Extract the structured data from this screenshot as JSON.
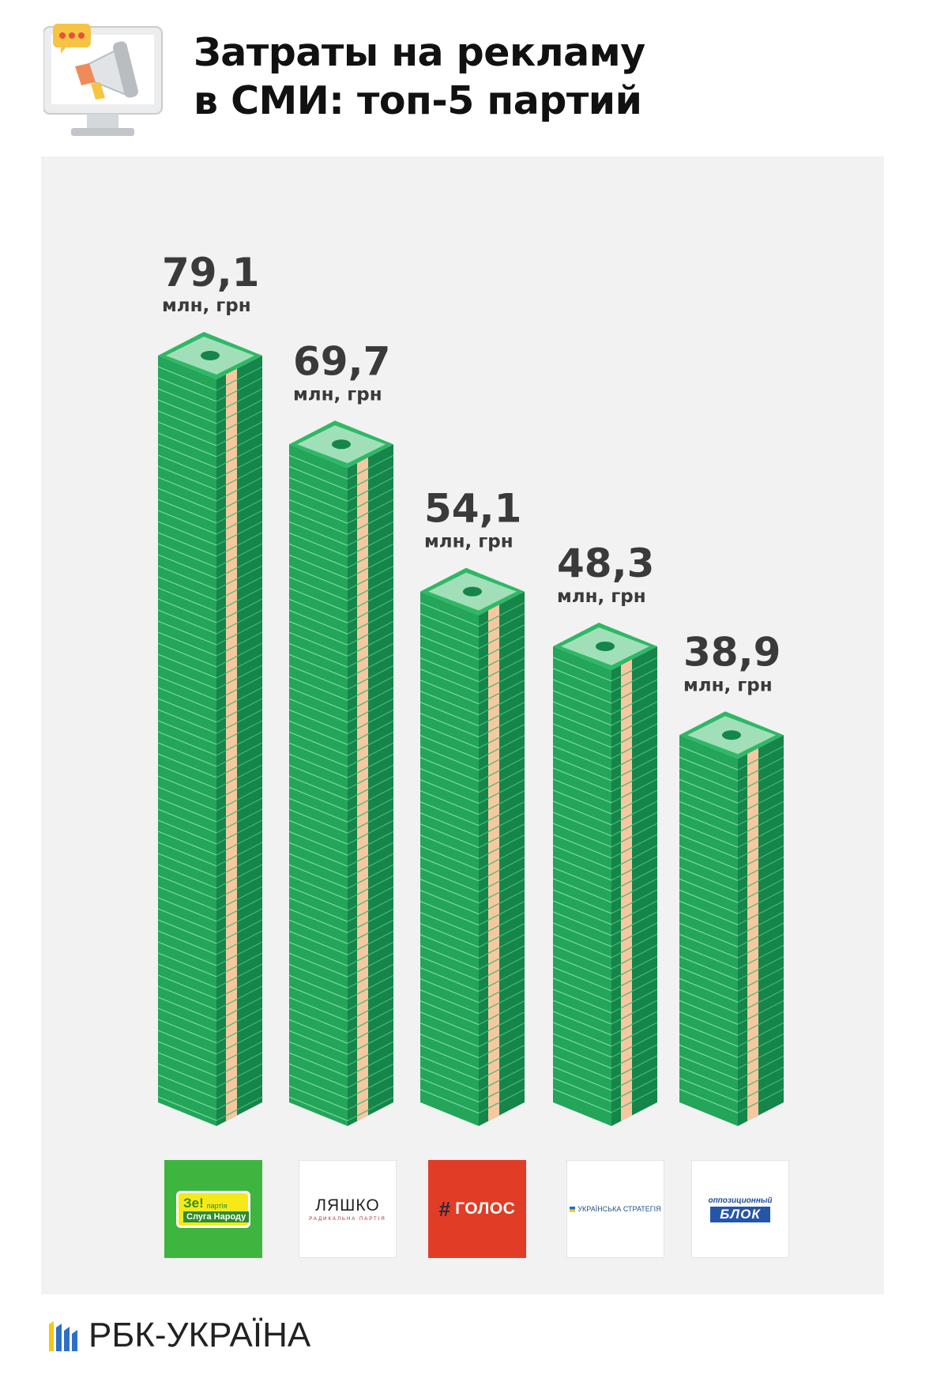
{
  "header": {
    "title_line1": "Затраты на рекламу",
    "title_line2": "в СМИ: топ-5 партий",
    "icon": "megaphone-monitor-icon"
  },
  "chart_data": {
    "type": "bar",
    "title": "Затраты на рекламу в СМИ: топ-5 партий",
    "categories": [
      "Слуга Народу",
      "Ляшко",
      "Голос",
      "Українська Стратегія",
      "Оппозиционный блок"
    ],
    "values": [
      79.1,
      69.7,
      54.1,
      48.3,
      38.9
    ],
    "value_labels": [
      "79,1",
      "69,7",
      "54,1",
      "48,3",
      "38,9"
    ],
    "unit": "млн, грн",
    "ylim": [
      0,
      79.1
    ],
    "grid": false,
    "colors": {
      "money": "#23a55a",
      "money_dark": "#15854a",
      "band": "#f7c8a0",
      "panel": "#f2f2f2"
    }
  },
  "logos": {
    "sluha_ze": "Зе!",
    "sluha_party": "партія",
    "sluha_name": "Слуга Народу",
    "lyashko_name": "ЛЯШКО",
    "lyashko_sub": "РАДИКАЛЬНА ПАРТІЯ",
    "holos_hash": "#",
    "holos_name": "ГОЛОС",
    "strategy_name": "УКРАЇНСЬКА СТРАТЕГІЯ",
    "opp_top": "оппозиционный",
    "opp_blok": "БЛОК"
  },
  "footer": {
    "brand": "РБК-УКРАЇНА"
  }
}
